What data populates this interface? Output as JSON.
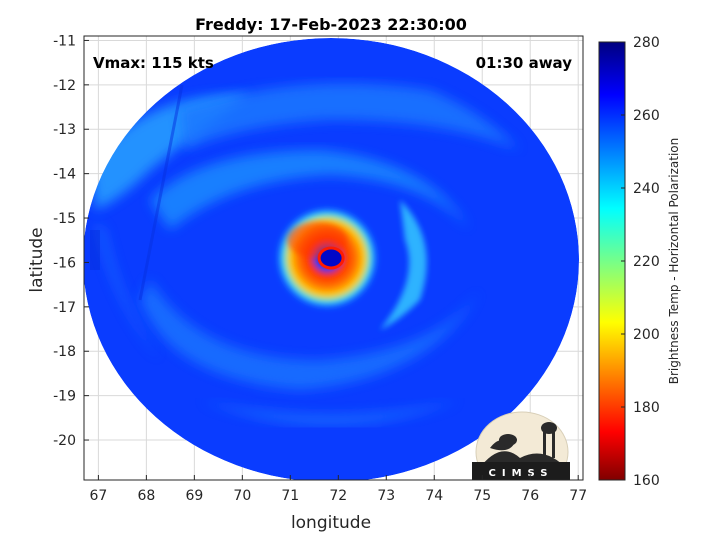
{
  "chart_data": {
    "type": "heatmap",
    "title": "Freddy: 17-Feb-2023 22:30:00",
    "xlabel": "longitude",
    "ylabel": "latitude",
    "xlim": [
      66.7,
      77.1
    ],
    "ylim": [
      -20.9,
      -10.9
    ],
    "x_ticks": [
      67,
      68,
      69,
      70,
      71,
      72,
      73,
      74,
      75,
      76,
      77
    ],
    "y_ticks": [
      -11,
      -12,
      -13,
      -14,
      -15,
      -16,
      -17,
      -18,
      -19,
      -20
    ],
    "grid": true,
    "annotations": {
      "vmax": "Vmax: 115 kts",
      "time_offset": "01:30 away",
      "logo": "CIMSS"
    },
    "storm_center": {
      "lon": 71.85,
      "lat": -15.9
    },
    "colorbar": {
      "label": "Brightness Temp - Horizontal Polarization",
      "min": 160,
      "max": 280,
      "ticks": [
        160,
        180,
        200,
        220,
        240,
        260,
        280
      ],
      "colormap": "jet"
    },
    "background_temp_K": 262
  },
  "colors": {
    "axis": "#262626",
    "grid": "#d9d9d9"
  }
}
